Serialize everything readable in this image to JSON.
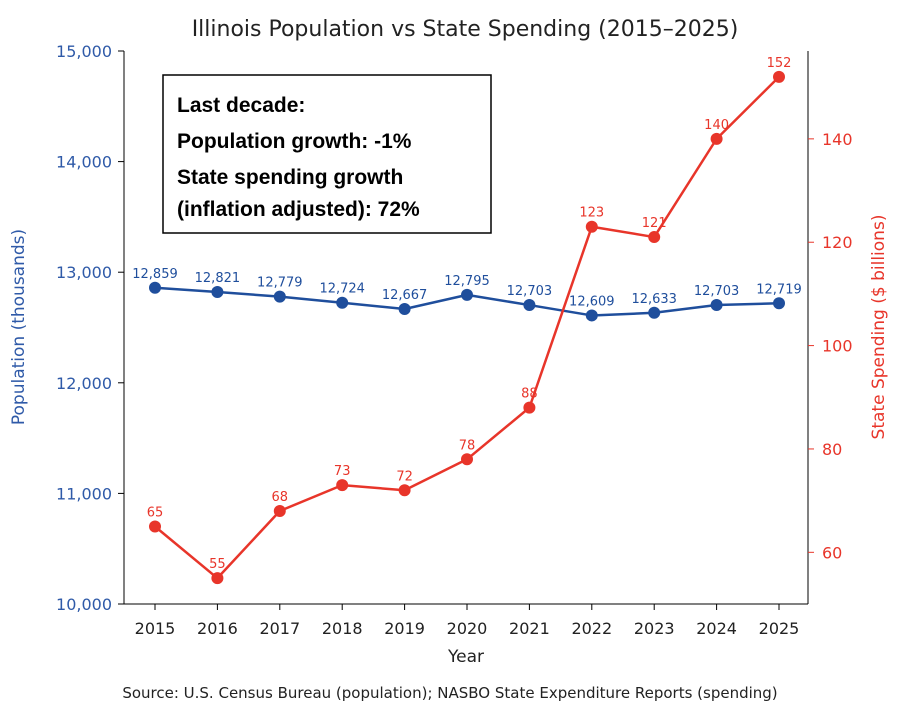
{
  "chart_data": {
    "type": "line",
    "title": "Illinois Population vs State Spending (2015–2025)",
    "xlabel": "Year",
    "ylabel_left": "Population (thousands)",
    "ylabel_right": "State Spending ($ billions)",
    "categories": [
      "2015",
      "2016",
      "2017",
      "2018",
      "2019",
      "2020",
      "2021",
      "2022",
      "2023",
      "2024",
      "2025"
    ],
    "y_left_lim": [
      10000,
      15000
    ],
    "y_left_ticks": [
      10000,
      11000,
      12000,
      13000,
      14000,
      15000
    ],
    "y_left_tick_labels": [
      "10,000",
      "11,000",
      "12,000",
      "13,000",
      "14,000",
      "15,000"
    ],
    "y_right_lim": [
      50,
      157
    ],
    "y_right_ticks": [
      60,
      80,
      100,
      120,
      140
    ],
    "y_right_tick_labels": [
      "60",
      "80",
      "100",
      "120",
      "140"
    ],
    "series": [
      {
        "name": "Population (thousands)",
        "axis": "left",
        "color": "#1f4e9c",
        "values": [
          12859,
          12821,
          12779,
          12724,
          12667,
          12795,
          12703,
          12609,
          12633,
          12703,
          12719
        ],
        "labels": [
          "12,859",
          "12,821",
          "12,779",
          "12,724",
          "12,667",
          "12,795",
          "12,703",
          "12,609",
          "12,633",
          "12,703",
          "12,719"
        ]
      },
      {
        "name": "State Spending ($ billions)",
        "axis": "right",
        "color": "#e8352a",
        "values": [
          65,
          55,
          68,
          73,
          72,
          78,
          88,
          123,
          121,
          140,
          152
        ],
        "labels": [
          "65",
          "55",
          "68",
          "73",
          "72",
          "78",
          "88",
          "123",
          "121",
          "140",
          "152"
        ]
      }
    ],
    "annotation": {
      "lines": [
        "Last decade:",
        "Population growth: -1%",
        "State spending growth",
        "(inflation adjusted): 72%"
      ]
    },
    "source": "Source: U.S. Census Bureau (population); NASBO State Expenditure Reports (spending)"
  }
}
